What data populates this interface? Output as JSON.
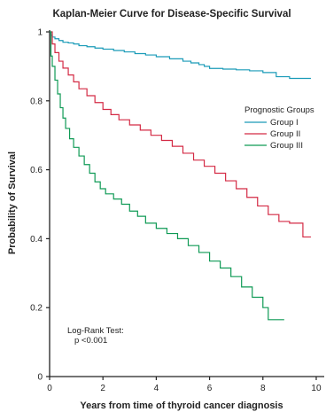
{
  "chart_data": {
    "type": "line",
    "title": "Kaplan-Meier Curve for Disease-Specific Survival",
    "xlabel": "Years from time of thyroid cancer diagnosis",
    "ylabel": "Probability of Survival",
    "xlim": [
      0,
      10.3
    ],
    "ylim": [
      0,
      1
    ],
    "xticks": [
      0,
      2,
      4,
      6,
      8,
      10
    ],
    "yticks": [
      0,
      0.2,
      0.4,
      0.6,
      0.8,
      1
    ],
    "xtick_labels": [
      "0",
      "2",
      "4",
      "6",
      "8",
      "10"
    ],
    "ytick_labels": [
      "0",
      "0.2",
      "0.4",
      "0.6",
      "0.8",
      "1"
    ],
    "grid": false,
    "legend": {
      "title": "Prognostic Groups",
      "placement": "right-middle"
    },
    "annotation": {
      "line1": "Log-Rank Test:",
      "line2": "p <0.001"
    },
    "series": [
      {
        "name": "Group I",
        "color": "#1a9bb8",
        "step": true,
        "x": [
          0,
          0.05,
          0.1,
          0.2,
          0.35,
          0.5,
          0.7,
          0.9,
          1.1,
          1.4,
          1.7,
          2.0,
          2.4,
          2.8,
          3.2,
          3.6,
          4.0,
          4.5,
          5.0,
          5.3,
          5.6,
          5.8,
          6.0,
          6.5,
          7.0,
          7.5,
          8.0,
          8.5,
          9.0,
          9.8
        ],
        "y": [
          1.0,
          0.99,
          0.985,
          0.98,
          0.975,
          0.97,
          0.968,
          0.965,
          0.96,
          0.957,
          0.953,
          0.95,
          0.946,
          0.942,
          0.937,
          0.933,
          0.928,
          0.922,
          0.915,
          0.91,
          0.905,
          0.9,
          0.894,
          0.892,
          0.89,
          0.887,
          0.882,
          0.87,
          0.865,
          0.865
        ]
      },
      {
        "name": "Group II",
        "color": "#d42a44",
        "step": true,
        "x": [
          0,
          0.1,
          0.2,
          0.35,
          0.5,
          0.7,
          0.9,
          1.1,
          1.4,
          1.7,
          2.0,
          2.3,
          2.6,
          3.0,
          3.4,
          3.8,
          4.2,
          4.6,
          5.0,
          5.4,
          5.8,
          6.2,
          6.6,
          7.0,
          7.4,
          7.8,
          8.2,
          8.6,
          9.0,
          9.5,
          9.8
        ],
        "y": [
          1.0,
          0.965,
          0.94,
          0.915,
          0.895,
          0.875,
          0.855,
          0.835,
          0.815,
          0.795,
          0.775,
          0.76,
          0.745,
          0.73,
          0.715,
          0.7,
          0.685,
          0.668,
          0.648,
          0.628,
          0.61,
          0.59,
          0.568,
          0.545,
          0.52,
          0.495,
          0.47,
          0.45,
          0.445,
          0.405,
          0.405
        ]
      },
      {
        "name": "Group III",
        "color": "#0f9a55",
        "step": true,
        "x": [
          0,
          0.05,
          0.1,
          0.2,
          0.3,
          0.4,
          0.5,
          0.6,
          0.75,
          0.9,
          1.1,
          1.3,
          1.5,
          1.7,
          1.9,
          2.1,
          2.4,
          2.7,
          3.0,
          3.3,
          3.6,
          4.0,
          4.4,
          4.8,
          5.2,
          5.6,
          6.0,
          6.4,
          6.8,
          7.2,
          7.6,
          8.0,
          8.2,
          8.8
        ],
        "y": [
          1.0,
          0.93,
          0.9,
          0.86,
          0.82,
          0.78,
          0.75,
          0.72,
          0.69,
          0.665,
          0.64,
          0.615,
          0.59,
          0.565,
          0.545,
          0.53,
          0.515,
          0.5,
          0.48,
          0.465,
          0.445,
          0.43,
          0.415,
          0.4,
          0.38,
          0.36,
          0.335,
          0.315,
          0.29,
          0.26,
          0.23,
          0.2,
          0.165,
          0.165
        ]
      }
    ]
  }
}
